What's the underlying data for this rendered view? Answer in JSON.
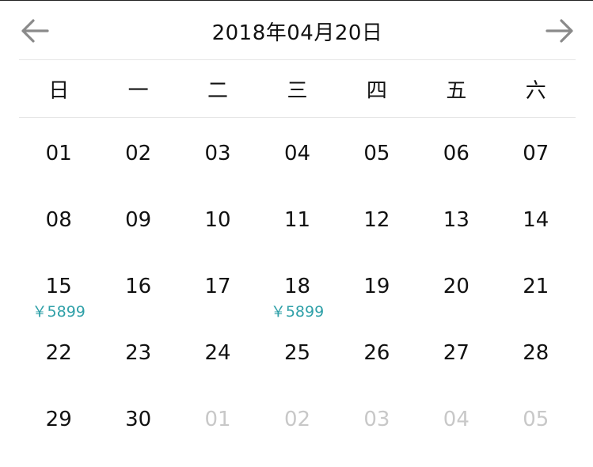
{
  "header": {
    "title": "2018年04月20日"
  },
  "weekdays": [
    "日",
    "一",
    "二",
    "三",
    "四",
    "五",
    "六"
  ],
  "days": [
    {
      "label": "01"
    },
    {
      "label": "02"
    },
    {
      "label": "03"
    },
    {
      "label": "04"
    },
    {
      "label": "05"
    },
    {
      "label": "06"
    },
    {
      "label": "07"
    },
    {
      "label": "08"
    },
    {
      "label": "09"
    },
    {
      "label": "10"
    },
    {
      "label": "11"
    },
    {
      "label": "12"
    },
    {
      "label": "13"
    },
    {
      "label": "14"
    },
    {
      "label": "15",
      "price": "￥5899"
    },
    {
      "label": "16"
    },
    {
      "label": "17"
    },
    {
      "label": "18",
      "price": "￥5899"
    },
    {
      "label": "19"
    },
    {
      "label": "20"
    },
    {
      "label": "21"
    },
    {
      "label": "22"
    },
    {
      "label": "23"
    },
    {
      "label": "24"
    },
    {
      "label": "25"
    },
    {
      "label": "26"
    },
    {
      "label": "27"
    },
    {
      "label": "28"
    },
    {
      "label": "29"
    },
    {
      "label": "30"
    },
    {
      "label": "01",
      "muted": true
    },
    {
      "label": "02",
      "muted": true
    },
    {
      "label": "03",
      "muted": true
    },
    {
      "label": "04",
      "muted": true
    },
    {
      "label": "05",
      "muted": true
    }
  ],
  "icons": {
    "prev": "arrow-left-icon",
    "next": "arrow-right-icon"
  },
  "colors": {
    "price": "#2fa0a8",
    "muted_day": "#c8c8c8",
    "arrow": "#8a8a8a"
  }
}
